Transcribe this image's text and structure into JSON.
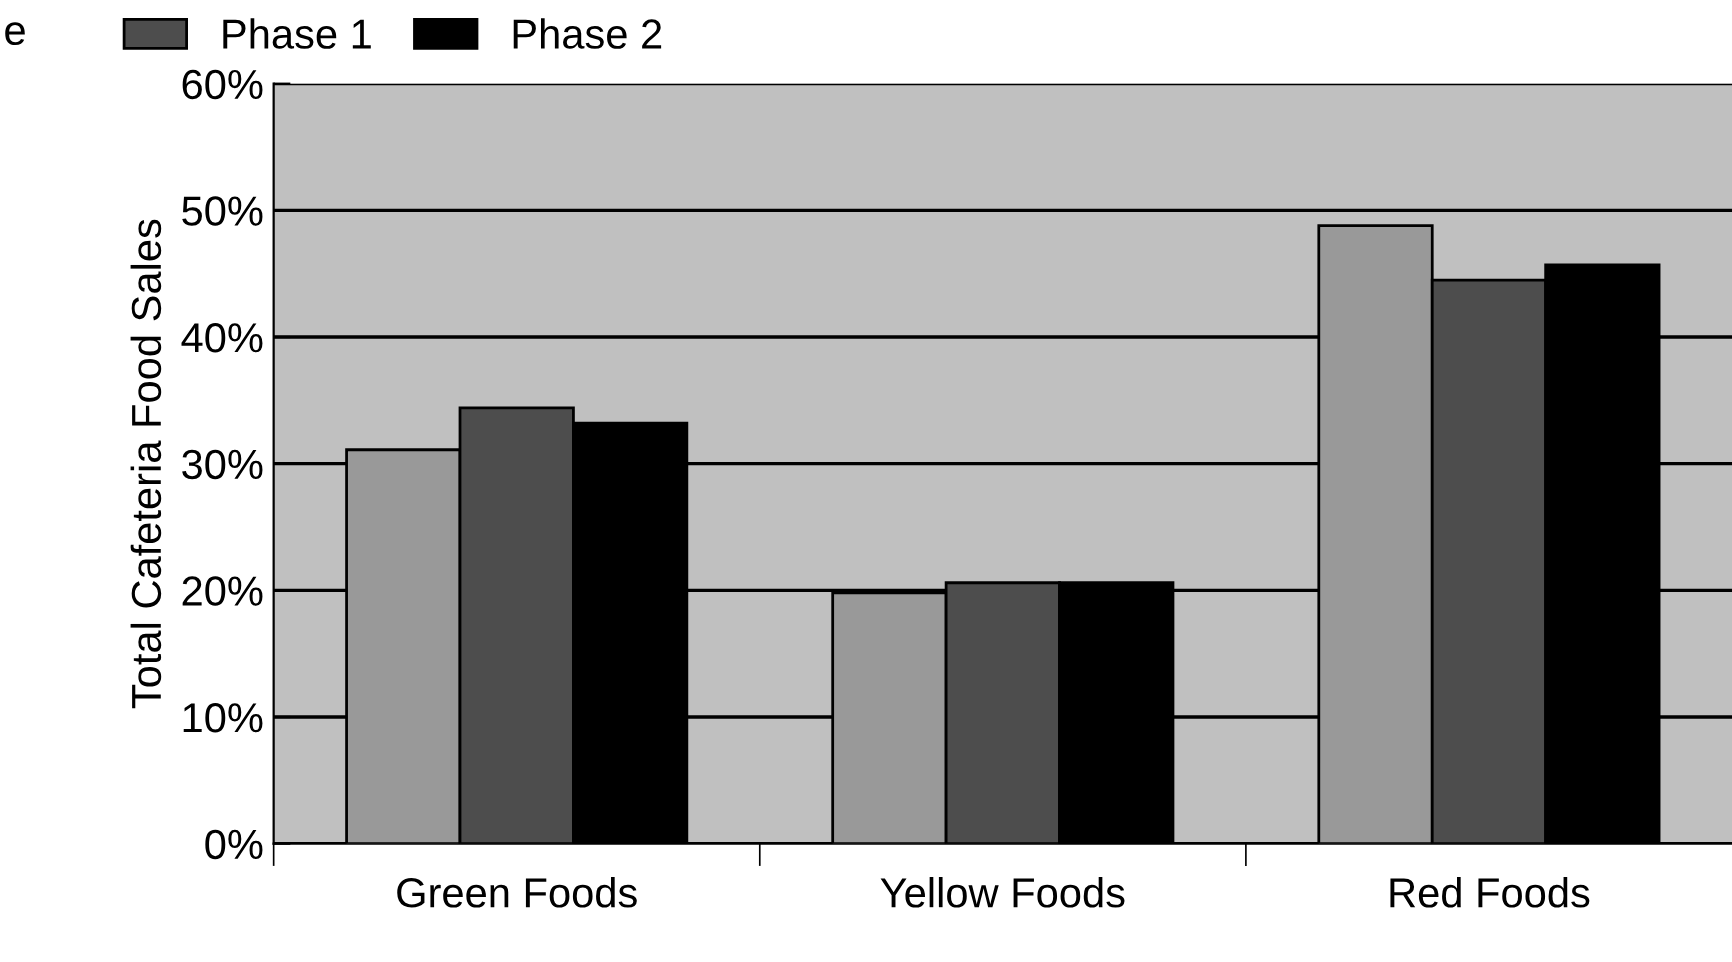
{
  "chart_data": {
    "type": "bar",
    "ylabel": "Total Cafeteria Food Sales",
    "categories": [
      "Green Foods",
      "Yellow Foods",
      "Red Foods"
    ],
    "series": [
      {
        "color": "#999999",
        "values": [
          31.1,
          19.8,
          48.8
        ]
      },
      {
        "name": "Phase 1",
        "color": "#4d4d4d",
        "values": [
          34.4,
          20.6,
          44.5
        ]
      },
      {
        "name": "Phase 2",
        "color": "#000000",
        "values": [
          33.2,
          20.6,
          45.7
        ]
      }
    ],
    "ylim": [
      0,
      60
    ],
    "yticks": [
      {
        "value": 0,
        "label": "0%"
      },
      {
        "value": 10,
        "label": "10%"
      },
      {
        "value": 20,
        "label": "20%"
      },
      {
        "value": 30,
        "label": "30%"
      },
      {
        "value": 40,
        "label": "40%"
      },
      {
        "value": 50,
        "label": "50%"
      },
      {
        "value": 60,
        "label": "60%"
      }
    ],
    "grid": "y",
    "legend": "top left",
    "annotations": [
      "e"
    ]
  }
}
